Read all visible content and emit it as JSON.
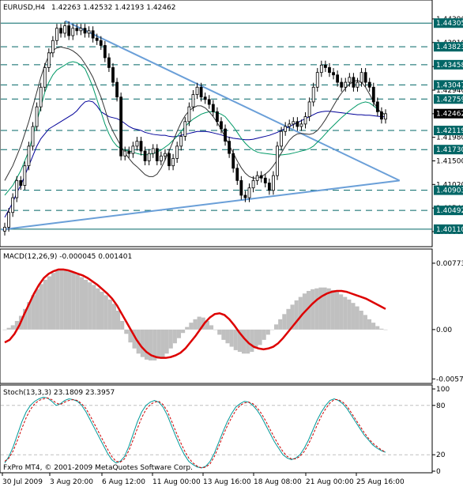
{
  "header": {
    "symbol_tf": "EURUSD,H4",
    "ohlc": "1.42263 1.42532 1.42193 1.42462"
  },
  "footer": {
    "copyright": "FxPro MT4, © 2001-2009 MetaQuotes Software Corp."
  },
  "colors": {
    "background": "#ffffff",
    "candle": "#000000",
    "grid_dash": "#006666",
    "level_box": "#006666",
    "current_box": "#000000",
    "trendline": "#6a9fd8",
    "ma_fast": "#009966",
    "ma_mid": "#333333",
    "ma_slow": "#000099",
    "macd_hist": "#c0c0c0",
    "macd_signal": "#dd0000",
    "stoch_main": "#009999",
    "stoch_signal": "#cc0000"
  },
  "chart_data": [
    {
      "type": "candlestick",
      "title": "EURUSD,H4",
      "ylim": [
        1.3985,
        1.4455
      ],
      "y_ticks": [
        "1.44390",
        "1.43910",
        "1.43420",
        "1.42940",
        "1.42460",
        "1.41980",
        "1.41500",
        "1.41020",
        "1.40540",
        "1.40060"
      ],
      "levels": [
        "1.44305",
        "1.43823",
        "1.43458",
        "1.43047",
        "1.42759",
        "1.42119",
        "1.41730",
        "1.40903",
        "1.40492",
        "1.40110"
      ],
      "current_price": "1.42462",
      "x_labels": [
        "30 Jul 2009",
        "3 Aug 20:00",
        "6 Aug 12:00",
        "11 Aug 00:00",
        "13 Aug 16:00",
        "18 Aug 08:00",
        "21 Aug 00:00",
        "25 Aug 16:00"
      ],
      "close": [
        1.4015,
        1.4045,
        1.4075,
        1.411,
        1.41,
        1.414,
        1.418,
        1.422,
        1.426,
        1.43,
        1.434,
        1.437,
        1.4395,
        1.442,
        1.441,
        1.4425,
        1.4405,
        1.442,
        1.4415,
        1.442,
        1.441,
        1.4415,
        1.44,
        1.4395,
        1.4385,
        1.436,
        1.434,
        1.431,
        1.428,
        1.416,
        1.417,
        1.4165,
        1.418,
        1.419,
        1.417,
        1.415,
        1.4165,
        1.4175,
        1.415,
        1.416,
        1.4165,
        1.414,
        1.4155,
        1.418,
        1.42,
        1.423,
        1.426,
        1.4285,
        1.43,
        1.428,
        1.4275,
        1.4265,
        1.425,
        1.423,
        1.4215,
        1.419,
        1.4165,
        1.4135,
        1.411,
        1.408,
        1.4075,
        1.4095,
        1.411,
        1.412,
        1.4115,
        1.4105,
        1.409,
        1.412,
        1.418,
        1.421,
        1.422,
        1.4225,
        1.423,
        1.422,
        1.4225,
        1.424,
        1.427,
        1.43,
        1.433,
        1.4345,
        1.434,
        1.433,
        1.4325,
        1.431,
        1.43,
        1.431,
        1.432,
        1.43,
        1.431,
        1.433,
        1.431,
        1.43,
        1.427,
        1.425,
        1.4235,
        1.4246
      ],
      "series": [
        {
          "name": "MA",
          "values": [
            1.4035,
            1.405,
            1.4065,
            1.4085,
            1.41,
            1.412,
            1.414,
            1.416,
            1.418,
            1.4195,
            1.4205,
            1.4215,
            1.422,
            1.4225,
            1.423,
            1.4235,
            1.424,
            1.4245,
            1.4252,
            1.4262,
            1.427,
            1.4272,
            1.427,
            1.4262,
            1.425,
            1.4245,
            1.424,
            1.4238,
            1.4236,
            1.4232,
            1.4226,
            1.422,
            1.4216,
            1.4214,
            1.4212,
            1.4208,
            1.4206,
            1.4204,
            1.4203,
            1.4202,
            1.4202,
            1.42,
            1.4199,
            1.42,
            1.4202,
            1.4204,
            1.4206,
            1.4208,
            1.421,
            1.421,
            1.421,
            1.4209,
            1.4207,
            1.4205,
            1.4203,
            1.42,
            1.4198,
            1.4196,
            1.4195,
            1.4194,
            1.4193,
            1.4193,
            1.4194,
            1.4196,
            1.4198,
            1.42,
            1.4202,
            1.4205,
            1.4208,
            1.4212,
            1.4216,
            1.422,
            1.4224,
            1.4228,
            1.4232,
            1.4236,
            1.424,
            1.4244,
            1.4248,
            1.425,
            1.4251,
            1.4251,
            1.425,
            1.4249,
            1.4248,
            1.4247,
            1.4246,
            1.4245,
            1.4244,
            1.4244,
            1.4243,
            1.4243,
            1.4242,
            1.4241,
            1.424,
            1.424
          ]
        },
        {
          "name": "MA",
          "values": [
            1.408,
            1.409,
            1.41,
            1.4115,
            1.413,
            1.415,
            1.417,
            1.42,
            1.423,
            1.426,
            1.429,
            1.431,
            1.4325,
            1.4335,
            1.434,
            1.4345,
            1.435,
            1.4352,
            1.435,
            1.4345,
            1.4338,
            1.432,
            1.43,
            1.4275,
            1.425,
            1.4225,
            1.4205,
            1.419,
            1.418,
            1.4175,
            1.4172,
            1.417,
            1.4168,
            1.4165,
            1.4163,
            1.4162,
            1.4163,
            1.4165,
            1.4168,
            1.4172,
            1.4178,
            1.4184,
            1.4192,
            1.42,
            1.421,
            1.422,
            1.4228,
            1.4235,
            1.424,
            1.4245,
            1.4248,
            1.425,
            1.425,
            1.4248,
            1.4245,
            1.424,
            1.423,
            1.422,
            1.4208,
            1.4196,
            1.4186,
            1.4178,
            1.4172,
            1.4168,
            1.4166,
            1.4165,
            1.4164,
            1.4163,
            1.4162,
            1.4162,
            1.4163,
            1.4164,
            1.4166,
            1.4168,
            1.417,
            1.4172,
            1.4175,
            1.418,
            1.4188,
            1.4196,
            1.4205,
            1.4214,
            1.4222,
            1.423,
            1.4238,
            1.4245,
            1.4252,
            1.4258,
            1.4264,
            1.4268,
            1.427,
            1.4268,
            1.4262,
            1.4255,
            1.4248,
            1.4244
          ]
        },
        {
          "name": "MA",
          "values": [
            1.411,
            1.4125,
            1.414,
            1.416,
            1.418,
            1.4205,
            1.423,
            1.426,
            1.429,
            1.432,
            1.4345,
            1.4365,
            1.4375,
            1.438,
            1.4382,
            1.438,
            1.4378,
            1.4374,
            1.4368,
            1.436,
            1.4348,
            1.4335,
            1.432,
            1.43,
            1.428,
            1.4255,
            1.4228,
            1.421,
            1.4195,
            1.418,
            1.4166,
            1.4155,
            1.4145,
            1.4138,
            1.413,
            1.4122,
            1.4118,
            1.4118,
            1.4123,
            1.4135,
            1.4152,
            1.417,
            1.419,
            1.421,
            1.4228,
            1.4242,
            1.4252,
            1.4258,
            1.4262,
            1.4262,
            1.4258,
            1.425,
            1.424,
            1.4228,
            1.4214,
            1.4198,
            1.4182,
            1.4166,
            1.415,
            1.4136,
            1.4125,
            1.4118,
            1.4115,
            1.4115,
            1.4118,
            1.4123,
            1.413,
            1.414,
            1.4152,
            1.4166,
            1.418,
            1.4192,
            1.42,
            1.4205,
            1.4206,
            1.4205,
            1.4204,
            1.4206,
            1.4212,
            1.4222,
            1.4234,
            1.4248,
            1.4262,
            1.4276,
            1.4288,
            1.4298,
            1.4306,
            1.4312,
            1.4314,
            1.431,
            1.43,
            1.4286,
            1.427,
            1.4256,
            1.4248,
            1.4244
          ]
        }
      ],
      "trendlines": [
        {
          "from": [
            "30 Jul 2009",
            1.401
          ],
          "to": [
            "25 Aug 16:00",
            1.411
          ]
        },
        {
          "from": [
            "3 Aug 20:00",
            1.4435
          ],
          "to": [
            "25 Aug 16:00",
            1.411
          ]
        }
      ]
    },
    {
      "type": "bar",
      "title": "MACD(12,26,9) -0.000045 0.001401",
      "ylim": [
        -0.006,
        0.008
      ],
      "y_ticks": [
        "0.00773",
        "0.00",
        "-0.00575"
      ],
      "values": [
        0.0,
        0.0002,
        0.0005,
        0.001,
        0.0016,
        0.0024,
        0.0032,
        0.004,
        0.0047,
        0.0053,
        0.0058,
        0.0062,
        0.0066,
        0.0069,
        0.007,
        0.007,
        0.0069,
        0.0067,
        0.0064,
        0.0061,
        0.0058,
        0.0055,
        0.0052,
        0.0048,
        0.0044,
        0.004,
        0.0035,
        0.003,
        0.0022,
        0.001,
        -0.0005,
        -0.0015,
        -0.0022,
        -0.0028,
        -0.0032,
        -0.0035,
        -0.0036,
        -0.0036,
        -0.0034,
        -0.0032,
        -0.0028,
        -0.0022,
        -0.0016,
        -0.001,
        -0.0004,
        0.0003,
        0.0008,
        0.0012,
        0.0015,
        0.0014,
        0.001,
        0.0005,
        0.0,
        -0.0006,
        -0.0012,
        -0.0016,
        -0.002,
        -0.0024,
        -0.0026,
        -0.0028,
        -0.0028,
        -0.0026,
        -0.0022,
        -0.0018,
        -0.0012,
        -0.0006,
        0.0,
        0.0006,
        0.0012,
        0.0018,
        0.0024,
        0.0029,
        0.0034,
        0.0038,
        0.0042,
        0.0045,
        0.0047,
        0.0048,
        0.0049,
        0.0049,
        0.0048,
        0.0046,
        0.0044,
        0.0041,
        0.0038,
        0.0035,
        0.0031,
        0.0027,
        0.0022,
        0.0017,
        0.0012,
        0.0008,
        0.0004,
        0.0001,
        0.0
      ],
      "signal": [
        -0.0015,
        -0.0012,
        -0.0005,
        0.0005,
        0.0018,
        0.003,
        0.0042,
        0.0052,
        0.006,
        0.0065,
        0.0068,
        0.007,
        0.007,
        0.0069,
        0.0067,
        0.0065,
        0.0063,
        0.006,
        0.0056,
        0.0052,
        0.0047,
        0.0042,
        0.0036,
        0.0028,
        0.0018,
        0.0008,
        -0.0002,
        -0.0012,
        -0.002,
        -0.0026,
        -0.003,
        -0.0032,
        -0.0033,
        -0.0033,
        -0.0032,
        -0.003,
        -0.0027,
        -0.0022,
        -0.0015,
        -0.0008,
        0.0,
        0.0008,
        0.0014,
        0.0018,
        0.0019,
        0.0017,
        0.0012,
        0.0005,
        -0.0003,
        -0.001,
        -0.0016,
        -0.002,
        -0.0022,
        -0.0023,
        -0.0022,
        -0.002,
        -0.0016,
        -0.001,
        -0.0003,
        0.0004,
        0.0011,
        0.0018,
        0.0024,
        0.003,
        0.0035,
        0.0039,
        0.0042,
        0.0044,
        0.0045,
        0.0045,
        0.0044,
        0.0042,
        0.004,
        0.0038,
        0.0036,
        0.0033,
        0.003,
        0.0027,
        0.0024
      ]
    },
    {
      "type": "line",
      "title": "Stoch(13,3,3) 23.1809 23.3957",
      "ylim": [
        0,
        100
      ],
      "y_ticks": [
        "100",
        "80",
        "20",
        "0"
      ],
      "series": [
        {
          "name": "",
          "values": [
            10,
            18,
            30,
            45,
            60,
            72,
            80,
            85,
            88,
            90,
            89,
            85,
            80,
            82,
            86,
            88,
            87,
            85,
            80,
            72,
            62,
            52,
            42,
            32,
            22,
            14,
            10,
            12,
            18,
            30,
            45,
            60,
            72,
            80,
            84,
            86,
            84,
            78,
            68,
            55,
            42,
            30,
            20,
            12,
            8,
            5,
            4,
            6,
            12,
            22,
            35,
            48,
            60,
            70,
            78,
            82,
            85,
            84,
            80,
            74,
            66,
            56,
            46,
            36,
            28,
            20,
            16,
            14,
            16,
            20,
            28,
            38,
            50,
            62,
            72,
            80,
            86,
            88,
            86,
            82,
            76,
            68,
            60,
            52,
            44,
            38,
            32,
            28,
            25,
            23
          ]
        },
        {
          "name": "",
          "values": [
            12,
            16,
            25,
            38,
            52,
            65,
            75,
            82,
            86,
            88,
            89,
            87,
            83,
            81,
            84,
            86,
            87,
            86,
            82,
            76,
            67,
            57,
            47,
            37,
            27,
            18,
            12,
            11,
            15,
            25,
            38,
            52,
            65,
            75,
            81,
            84,
            85,
            81,
            73,
            61,
            48,
            36,
            25,
            16,
            10,
            6,
            4,
            5,
            9,
            18,
            30,
            43,
            55,
            65,
            74,
            80,
            83,
            84,
            82,
            77,
            70,
            61,
            51,
            41,
            32,
            24,
            18,
            15,
            15,
            18,
            24,
            33,
            44,
            56,
            67,
            76,
            83,
            87,
            87,
            84,
            79,
            71,
            63,
            55,
            47,
            40,
            34,
            30,
            26,
            23
          ]
        }
      ]
    }
  ]
}
